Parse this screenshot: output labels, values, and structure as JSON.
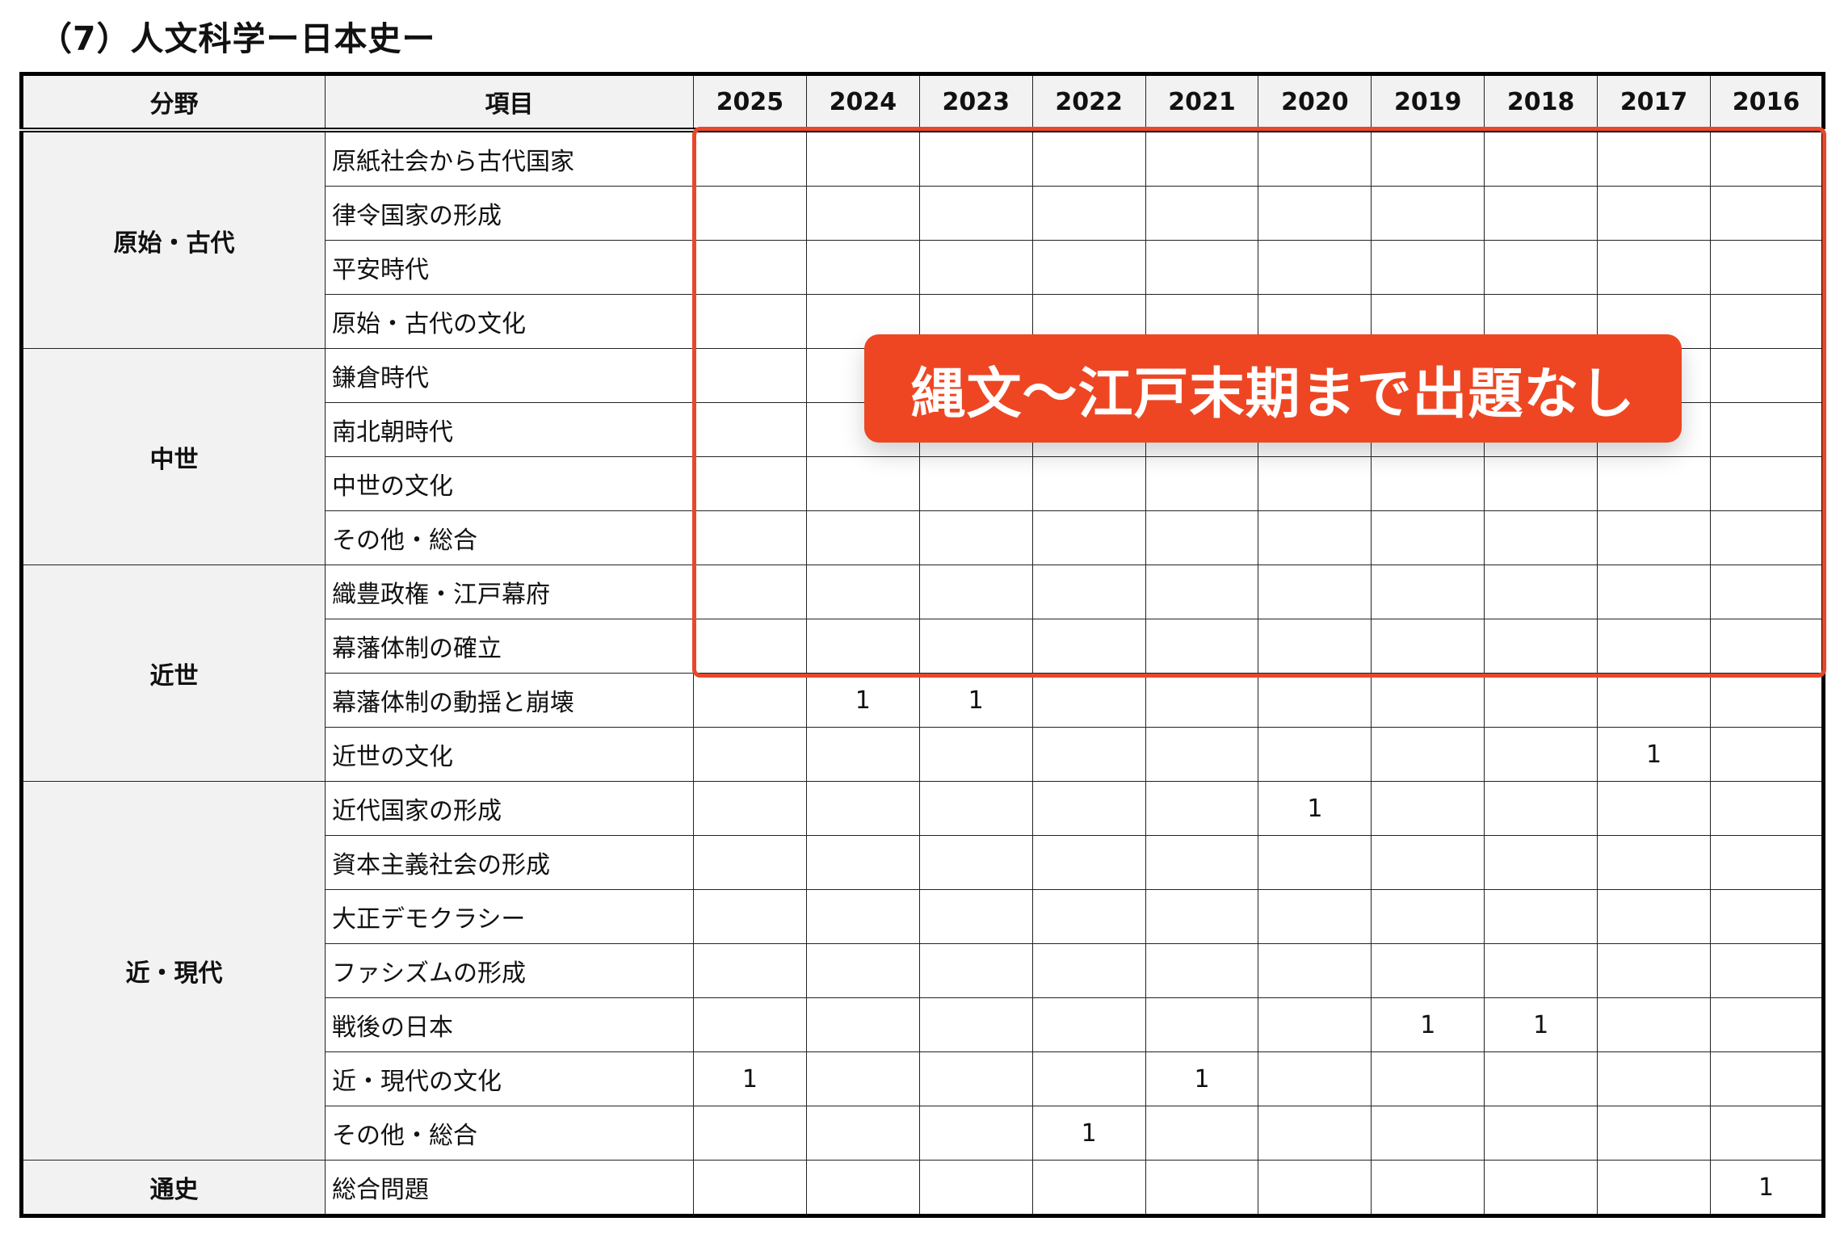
{
  "title": "（7）人文科学ー日本史ー",
  "headers": {
    "category": "分野",
    "item": "項目",
    "years": [
      "2025",
      "2024",
      "2023",
      "2022",
      "2021",
      "2020",
      "2019",
      "2018",
      "2017",
      "2016"
    ]
  },
  "groups": [
    {
      "category": "原始・古代",
      "rows": [
        {
          "item": "原紙社会から古代国家",
          "values": [
            "",
            "",
            "",
            "",
            "",
            "",
            "",
            "",
            "",
            ""
          ]
        },
        {
          "item": "律令国家の形成",
          "values": [
            "",
            "",
            "",
            "",
            "",
            "",
            "",
            "",
            "",
            ""
          ]
        },
        {
          "item": "平安時代",
          "values": [
            "",
            "",
            "",
            "",
            "",
            "",
            "",
            "",
            "",
            ""
          ]
        },
        {
          "item": "原始・古代の文化",
          "values": [
            "",
            "",
            "",
            "",
            "",
            "",
            "",
            "",
            "",
            ""
          ]
        }
      ]
    },
    {
      "category": "中世",
      "rows": [
        {
          "item": "鎌倉時代",
          "values": [
            "",
            "",
            "",
            "",
            "",
            "",
            "",
            "",
            "",
            ""
          ]
        },
        {
          "item": "南北朝時代",
          "values": [
            "",
            "",
            "",
            "",
            "",
            "",
            "",
            "",
            "",
            ""
          ]
        },
        {
          "item": "中世の文化",
          "values": [
            "",
            "",
            "",
            "",
            "",
            "",
            "",
            "",
            "",
            ""
          ]
        },
        {
          "item": "その他・総合",
          "values": [
            "",
            "",
            "",
            "",
            "",
            "",
            "",
            "",
            "",
            ""
          ]
        }
      ]
    },
    {
      "category": "近世",
      "rows": [
        {
          "item": "織豊政権・江戸幕府",
          "values": [
            "",
            "",
            "",
            "",
            "",
            "",
            "",
            "",
            "",
            ""
          ]
        },
        {
          "item": "幕藩体制の確立",
          "values": [
            "",
            "",
            "",
            "",
            "",
            "",
            "",
            "",
            "",
            ""
          ]
        },
        {
          "item": "幕藩体制の動揺と崩壊",
          "values": [
            "",
            "1",
            "1",
            "",
            "",
            "",
            "",
            "",
            "",
            ""
          ]
        },
        {
          "item": "近世の文化",
          "values": [
            "",
            "",
            "",
            "",
            "",
            "",
            "",
            "",
            "1",
            ""
          ]
        }
      ]
    },
    {
      "category": "近・現代",
      "rows": [
        {
          "item": "近代国家の形成",
          "values": [
            "",
            "",
            "",
            "",
            "",
            "1",
            "",
            "",
            "",
            ""
          ]
        },
        {
          "item": "資本主義社会の形成",
          "values": [
            "",
            "",
            "",
            "",
            "",
            "",
            "",
            "",
            "",
            ""
          ]
        },
        {
          "item": "大正デモクラシー",
          "values": [
            "",
            "",
            "",
            "",
            "",
            "",
            "",
            "",
            "",
            ""
          ]
        },
        {
          "item": "ファシズムの形成",
          "values": [
            "",
            "",
            "",
            "",
            "",
            "",
            "",
            "",
            "",
            ""
          ]
        },
        {
          "item": "戦後の日本",
          "values": [
            "",
            "",
            "",
            "",
            "",
            "",
            "1",
            "1",
            "",
            ""
          ]
        },
        {
          "item": "近・現代の文化",
          "values": [
            "1",
            "",
            "",
            "",
            "1",
            "",
            "",
            "",
            "",
            ""
          ]
        },
        {
          "item": "その他・総合",
          "values": [
            "",
            "",
            "",
            "1",
            "",
            "",
            "",
            "",
            "",
            ""
          ]
        }
      ]
    },
    {
      "category": "通史",
      "rows": [
        {
          "item": "総合問題",
          "values": [
            "",
            "",
            "",
            "",
            "",
            "",
            "",
            "",
            "",
            "1"
          ]
        }
      ]
    }
  ],
  "annotation": {
    "text": "縄文〜江戸末期まで出題なし",
    "color": "#ee4623"
  }
}
